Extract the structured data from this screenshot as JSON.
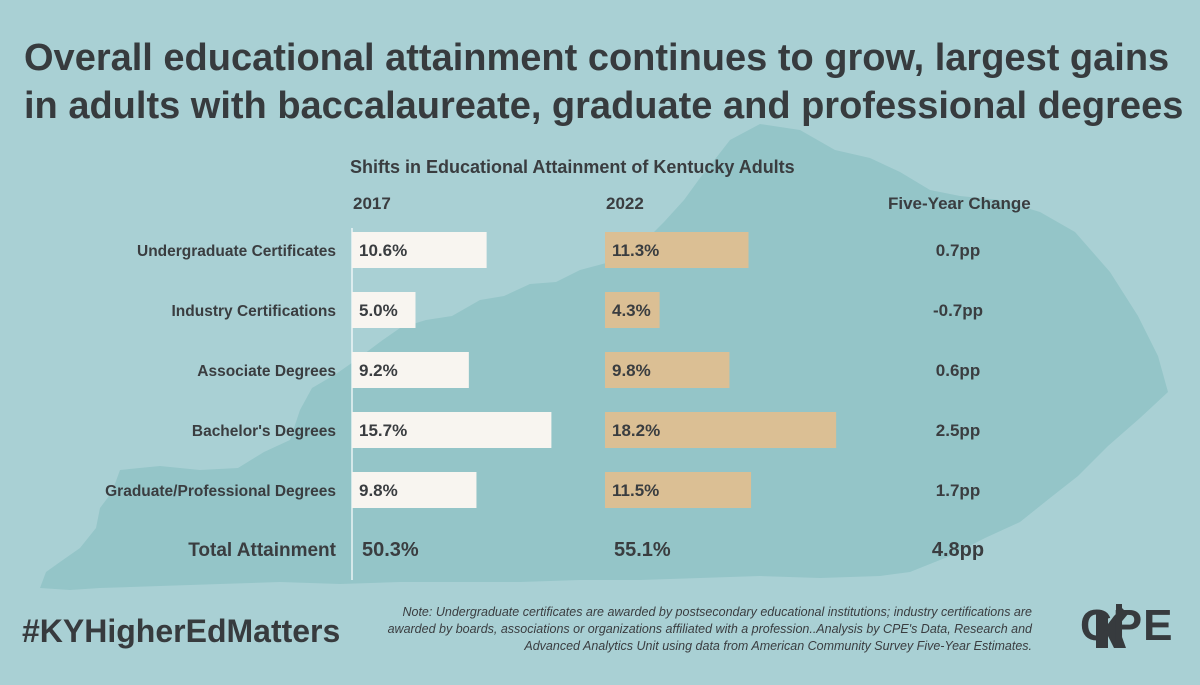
{
  "headline": {
    "line1": "Overall educational attainment continues to grow, largest gains",
    "line2": "in adults with baccalaureate, graduate and professional degrees"
  },
  "chart_data": {
    "type": "bar",
    "title": "Shifts in Educational Attainment of Kentucky Adults",
    "column_headers": [
      "2017",
      "2022",
      "Five-Year Change"
    ],
    "categories": [
      "Undergraduate Certificates",
      "Industry Certifications",
      "Associate Degrees",
      "Bachelor's Degrees",
      "Graduate/Professional Degrees"
    ],
    "series": [
      {
        "name": "2017",
        "values": [
          10.6,
          5.0,
          9.2,
          15.7,
          9.8
        ],
        "labels": [
          "10.6%",
          "5.0%",
          "9.2%",
          "15.7%",
          "9.8%"
        ],
        "color": "#f8f5f0"
      },
      {
        "name": "2022",
        "values": [
          11.3,
          4.3,
          9.8,
          18.2,
          11.5
        ],
        "labels": [
          "11.3%",
          "4.3%",
          "9.8%",
          "18.2%",
          "11.5%"
        ],
        "color": "#dbbf94"
      }
    ],
    "change": [
      "0.7pp",
      "-0.7pp",
      "0.6pp",
      "2.5pp",
      "1.7pp"
    ],
    "total": {
      "label": "Total Attainment",
      "2017": "50.3%",
      "2022": "55.1%",
      "change": "4.8pp"
    },
    "xlim": [
      0,
      20
    ]
  },
  "hashtag": "#KYHigherEdMatters",
  "note": "Note: Undergraduate certificates are awarded by postsecondary educational institutions; industry certifications are awarded by boards, associations or organizations affiliated with a profession..Analysis by CPE's Data, Research and Advanced Analytics Unit using data from American Community Survey Five-Year Estimates.",
  "logo": {
    "text": "CPE"
  },
  "colors": {
    "background": "#a9d0d4",
    "map": "#94c5c8",
    "bar_2017": "#f8f5f0",
    "bar_2022": "#dbbf94",
    "text": "#373b3e"
  }
}
